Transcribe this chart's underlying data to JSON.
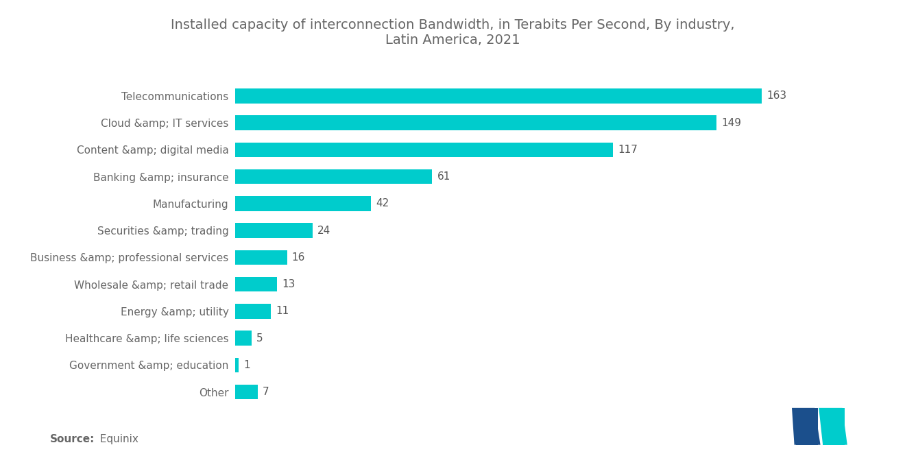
{
  "title": "Installed capacity of interconnection Bandwidth, in Terabits Per Second, By industry,\nLatin America, 2021",
  "categories": [
    "Other",
    "Government &amp; education",
    "Healthcare &amp; life sciences",
    "Energy &amp; utility",
    "Wholesale &amp; retail trade",
    "Business &amp; professional services",
    "Securities &amp; trading",
    "Manufacturing",
    "Banking &amp; insurance",
    "Content &amp; digital media",
    "Cloud &amp; IT services",
    "Telecommunications"
  ],
  "values": [
    7,
    1,
    5,
    11,
    13,
    16,
    24,
    42,
    61,
    117,
    149,
    163
  ],
  "bar_color": "#00CCCC",
  "background_color": "#FFFFFF",
  "title_color": "#666666",
  "label_color": "#666666",
  "value_color": "#555555",
  "source_bold": "Source:",
  "source_normal": "  Equinix",
  "title_fontsize": 14,
  "label_fontsize": 11,
  "value_fontsize": 11,
  "source_fontsize": 11,
  "logo_left_color": "#1B4F8C",
  "logo_right_color": "#00CCCC"
}
